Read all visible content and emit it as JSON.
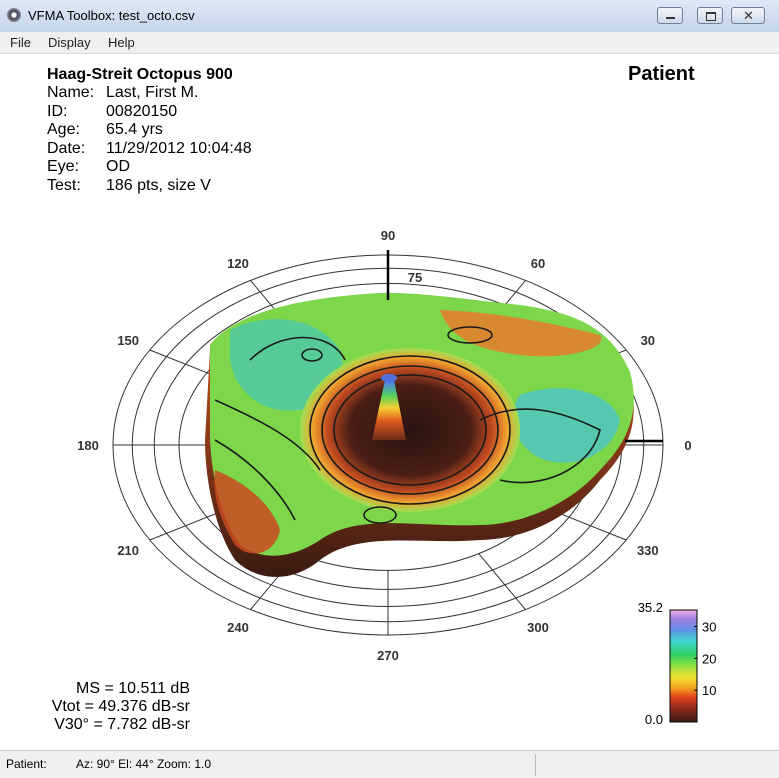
{
  "window": {
    "title": "VFMA Toolbox: test_octo.csv",
    "menu": [
      "File",
      "Display",
      "Help"
    ]
  },
  "header": {
    "device": "Haag-Streit Octopus 900",
    "heading": "Patient",
    "fields": [
      [
        "Name:",
        "Last, First M."
      ],
      [
        "ID:",
        "00820150"
      ],
      [
        "Age:",
        "65.4 yrs"
      ],
      [
        "Date:",
        "11/29/2012 10:04:48"
      ],
      [
        "Eye:",
        "OD"
      ],
      [
        "Test:",
        "186 pts, size V"
      ]
    ]
  },
  "plot": {
    "angles": [
      0,
      30,
      60,
      90,
      120,
      150,
      180,
      210,
      240,
      270,
      300,
      330
    ],
    "radial_label": 75,
    "colorbar": {
      "range": [
        0,
        35.2
      ],
      "ticks": [
        {
          "value": 35.2,
          "label": "35.2"
        },
        30,
        20,
        10,
        {
          "value": 0,
          "label": "0.0"
        }
      ]
    }
  },
  "stats": [
    "MS = 10.511 dB",
    "Vtot = 49.376 dB-sr",
    "V30° = 7.782 dB-sr"
  ],
  "status": {
    "label": "Patient:",
    "view": "Az: 90°  El: 44°  Zoom: 1.0"
  }
}
